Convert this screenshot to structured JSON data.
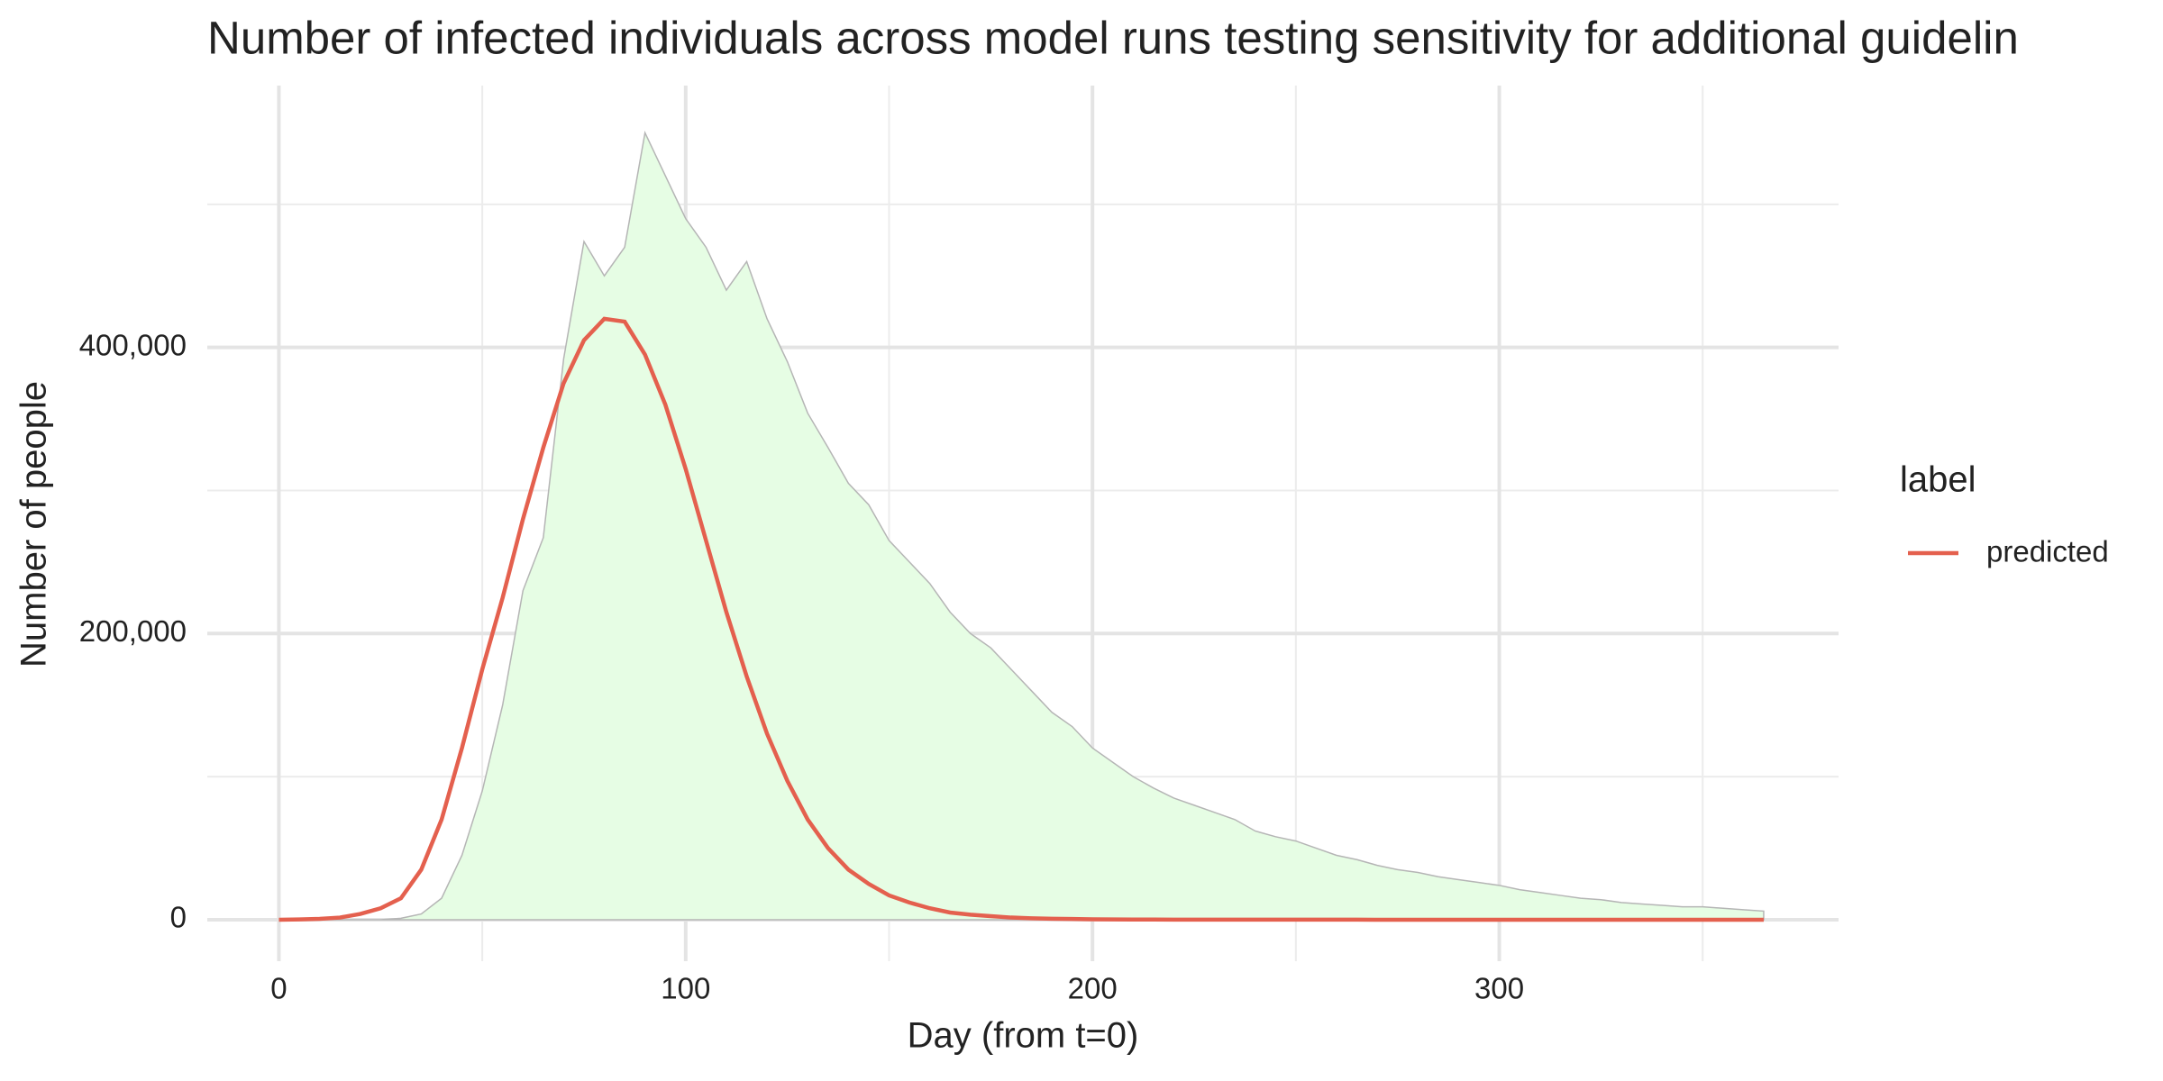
{
  "chart_data": {
    "type": "area_line",
    "title": "Number of infected individuals across model runs testing sensitivity for additional guidelin",
    "x_label": "Day (from t=0)",
    "y_label": "Number of people",
    "legend_title": "label",
    "legend_position": "right",
    "x": [
      0,
      5,
      10,
      15,
      20,
      25,
      30,
      35,
      40,
      45,
      50,
      55,
      60,
      65,
      70,
      75,
      80,
      85,
      90,
      95,
      100,
      105,
      110,
      115,
      120,
      125,
      130,
      135,
      140,
      145,
      150,
      155,
      160,
      165,
      170,
      175,
      180,
      185,
      190,
      195,
      200,
      205,
      210,
      215,
      220,
      225,
      230,
      235,
      240,
      245,
      250,
      255,
      260,
      265,
      270,
      275,
      280,
      285,
      290,
      295,
      300,
      305,
      310,
      315,
      320,
      325,
      330,
      335,
      340,
      345,
      350,
      355,
      360,
      365
    ],
    "series": [
      {
        "kind": "area",
        "color": "#e6fde4",
        "line_color": "#b5b5b5",
        "values": [
          0,
          0,
          0,
          0,
          0,
          0,
          1000,
          4000,
          15000,
          45000,
          90000,
          150000,
          230000,
          267000,
          392000,
          474000,
          450000,
          470000,
          550000,
          520000,
          490000,
          470000,
          440000,
          460000,
          420000,
          390000,
          354000,
          330000,
          305000,
          290000,
          265000,
          250000,
          235000,
          215000,
          200000,
          190000,
          175000,
          160000,
          145000,
          135000,
          120000,
          110000,
          100000,
          92000,
          85000,
          80000,
          75000,
          70000,
          62000,
          58000,
          55000,
          50000,
          45000,
          42000,
          38000,
          35000,
          33000,
          30000,
          28000,
          26000,
          24000,
          21000,
          19000,
          17000,
          15000,
          14000,
          12000,
          11000,
          10000,
          9000,
          9000,
          8000,
          7000,
          6000
        ]
      },
      {
        "kind": "line",
        "name": "predicted",
        "color": "#e4604e",
        "values": [
          0,
          200,
          600,
          1500,
          4000,
          8000,
          15000,
          35000,
          70000,
          120000,
          175000,
          225000,
          280000,
          330000,
          375000,
          405000,
          420000,
          418000,
          395000,
          360000,
          315000,
          265000,
          215000,
          170000,
          130000,
          97000,
          70000,
          50000,
          35000,
          25000,
          17000,
          12000,
          8000,
          5000,
          3500,
          2500,
          1500,
          1000,
          700,
          500,
          300,
          200,
          150,
          100,
          80,
          60,
          50,
          40,
          30,
          20,
          20,
          10,
          10,
          10,
          0,
          0,
          0,
          0,
          0,
          0,
          0,
          0,
          0,
          0,
          0,
          0,
          0,
          0,
          0,
          0,
          0,
          0,
          0,
          0
        ]
      }
    ],
    "xlim": [
      -17.6,
      383.4
    ],
    "ylim": [
      -29000,
      583000
    ],
    "xticks": [
      0,
      100,
      200,
      300
    ],
    "yticks": [
      0,
      {
        "value": 200000,
        "label": "200,000"
      },
      {
        "value": 400000,
        "label": "400,000"
      }
    ],
    "x_minor_ticks": [
      50,
      150,
      250,
      350
    ],
    "y_minor_ticks": [
      100000,
      300000,
      500000
    ],
    "grid": true
  }
}
